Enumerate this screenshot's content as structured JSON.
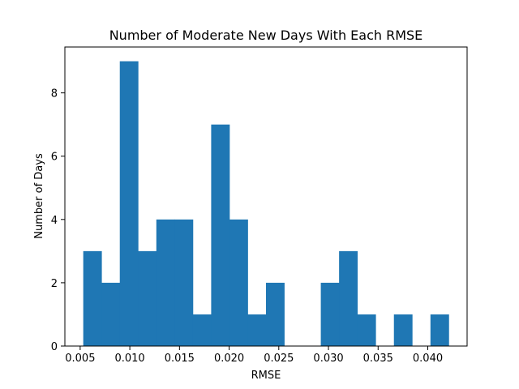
{
  "chart_data": {
    "type": "bar",
    "title": "Number of Moderate New Days With Each RMSE",
    "xlabel": "RMSE",
    "ylabel": "Number of Days",
    "bin_edges": [
      0.00531,
      0.00715,
      0.00899,
      0.01083,
      0.01267,
      0.01451,
      0.01635,
      0.01819,
      0.02003,
      0.02187,
      0.02371,
      0.02555,
      0.02739,
      0.02923,
      0.03107,
      0.03291,
      0.03475,
      0.03659,
      0.03843,
      0.04027,
      0.04211
    ],
    "values": [
      3,
      2,
      9,
      3,
      4,
      4,
      1,
      7,
      4,
      1,
      2,
      0,
      0,
      2,
      3,
      1,
      0,
      1,
      0,
      1
    ],
    "xlim": [
      0.00346,
      0.04396
    ],
    "ylim": [
      0,
      9.45
    ],
    "xticks": [
      0.005,
      0.01,
      0.015,
      0.02,
      0.025,
      0.03,
      0.035,
      0.04
    ],
    "xtick_labels": [
      "0.005",
      "0.010",
      "0.015",
      "0.020",
      "0.025",
      "0.030",
      "0.035",
      "0.040"
    ],
    "yticks": [
      0,
      2,
      4,
      6,
      8
    ],
    "ytick_labels": [
      "0",
      "2",
      "4",
      "6",
      "8"
    ],
    "bar_color": "#1f77b4",
    "grid": false,
    "legend": "none"
  }
}
